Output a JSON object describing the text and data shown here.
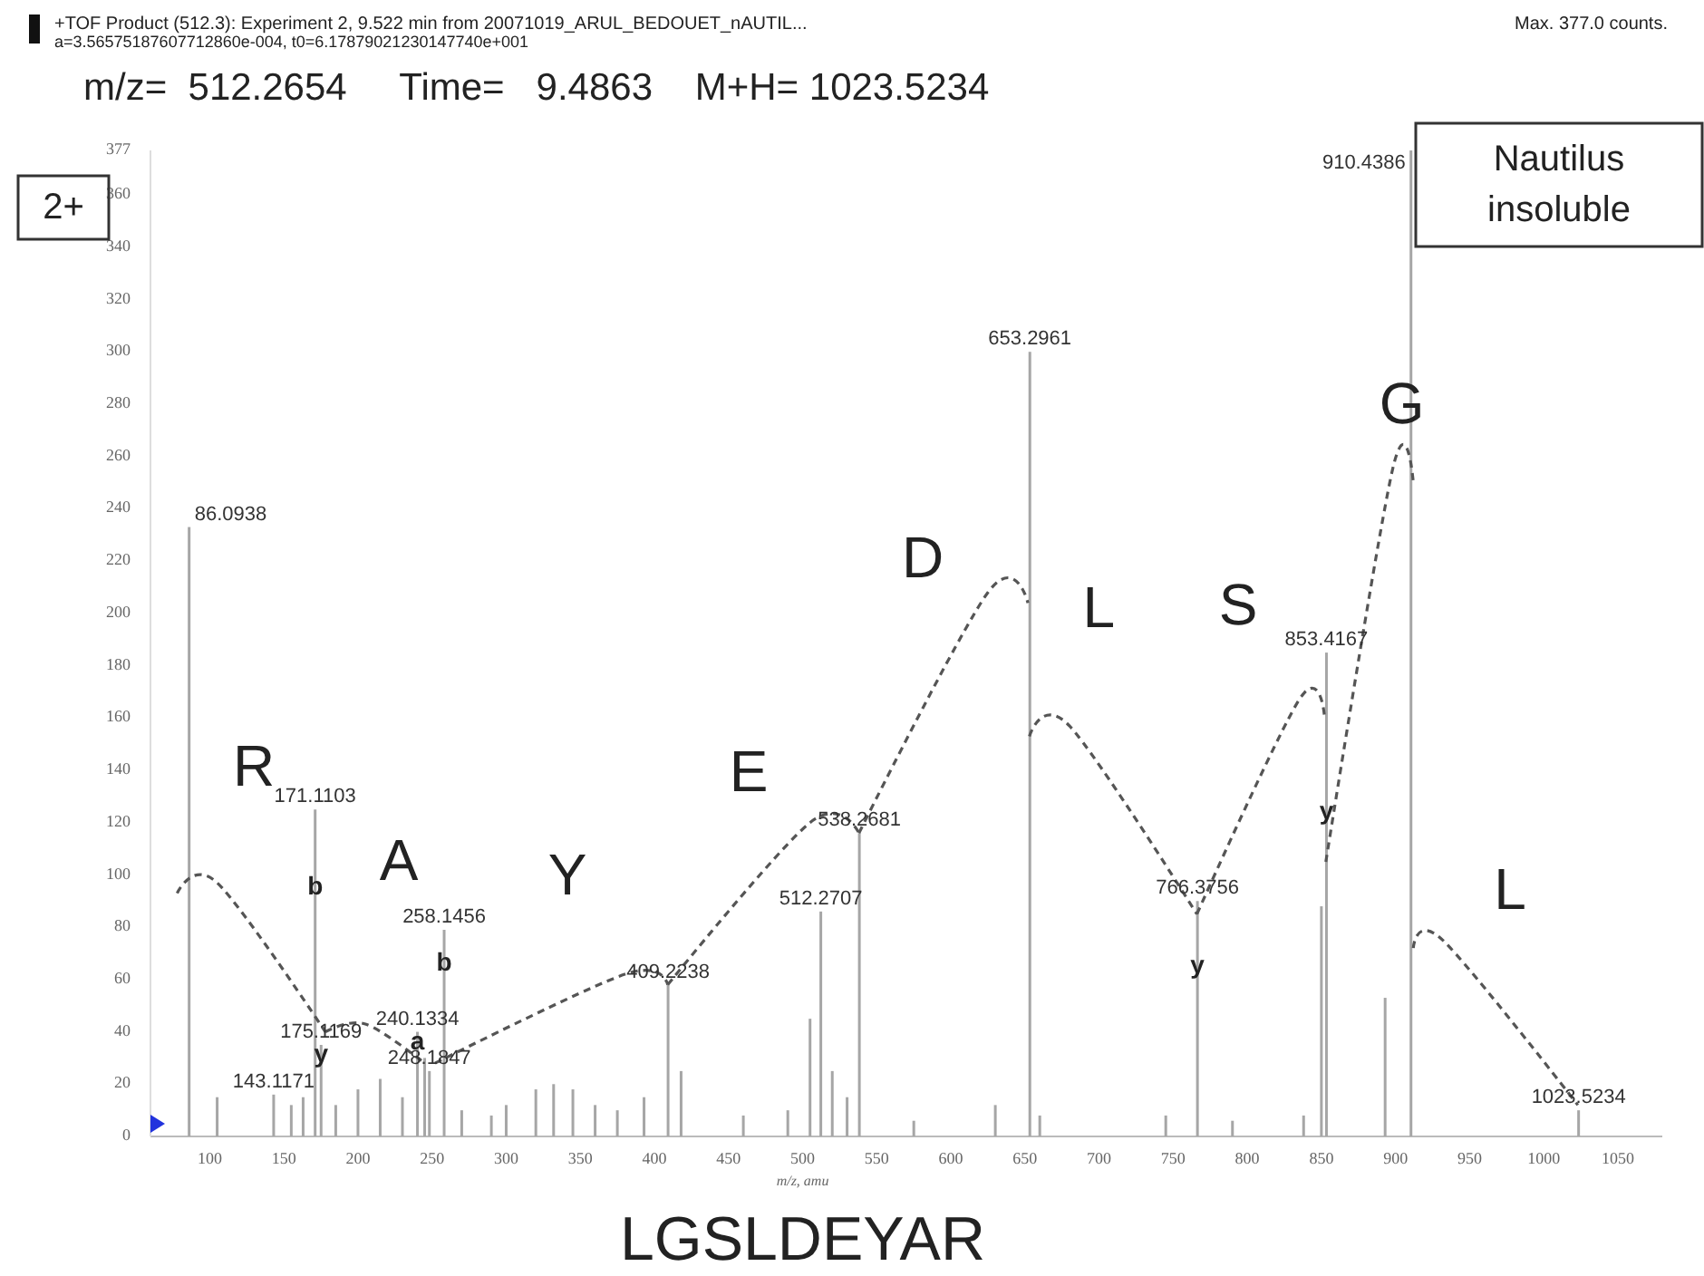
{
  "chart_data": {
    "type": "bar",
    "title": "+TOF Product (512.3): Experiment 2, 9.522 min from 20071019_ARUL_BEDOUET_nAUTIL...",
    "subtitle": "m/z=  512.2654     Time=   9.4863    M+H= 1023.5234",
    "xlabel": "m/z, amu",
    "x": [
      86.0938,
      105,
      143.1171,
      155,
      163,
      171.1103,
      175.1169,
      185,
      200,
      215,
      230,
      240.1334,
      245,
      248.1847,
      258.1456,
      270,
      290,
      300,
      320,
      332,
      345,
      360,
      375,
      393,
      409.2238,
      418,
      460,
      490,
      505,
      512.2707,
      520,
      530,
      538.2681,
      575,
      630,
      653.2961,
      660,
      745,
      766.3756,
      790,
      838,
      850,
      853.4167,
      893,
      910.4386,
      1023.5234
    ],
    "values": [
      233,
      15,
      16,
      12,
      15,
      125,
      35,
      12,
      18,
      22,
      15,
      40,
      30,
      25,
      79,
      10,
      8,
      12,
      18,
      20,
      18,
      12,
      10,
      15,
      58,
      25,
      8,
      10,
      45,
      86,
      25,
      15,
      116,
      6,
      12,
      300,
      8,
      8,
      90,
      6,
      8,
      88,
      185,
      53,
      377,
      10
    ],
    "color": "#a6a6a6",
    "xlim": [
      60,
      1080
    ],
    "ylim": [
      0,
      377
    ],
    "xticks": [
      100,
      150,
      200,
      250,
      300,
      350,
      400,
      450,
      500,
      550,
      600,
      650,
      700,
      750,
      800,
      850,
      900,
      950,
      1000,
      1050
    ],
    "yticks": [
      0,
      20,
      40,
      60,
      80,
      100,
      120,
      140,
      160,
      180,
      200,
      220,
      240,
      260,
      280,
      300,
      320,
      340,
      360,
      377
    ],
    "grid": false,
    "annotations": [
      "a=3.56575187607712860e-004, t0=6.17879021230147740e+001",
      "Max. 377.0 counts.",
      "2+",
      "Nautilus insoluble",
      "LGSLDEYAR",
      {
        "text": "86.0938",
        "x": 86.0938,
        "y": 233
      },
      {
        "text": "143.1171",
        "x": 143.1171,
        "y": 16
      },
      {
        "text": "171.1103",
        "x": 171.1103,
        "y": 125
      },
      {
        "text": "175.1169",
        "x": 175.1169,
        "y": 35
      },
      {
        "text": "240.1334",
        "x": 240.1334,
        "y": 40
      },
      {
        "text": "248.1847",
        "x": 248.1847,
        "y": 25
      },
      {
        "text": "258.1456",
        "x": 258.1456,
        "y": 79
      },
      {
        "text": "409.2238",
        "x": 409.2238,
        "y": 58
      },
      {
        "text": "512.2707",
        "x": 512.2707,
        "y": 86
      },
      {
        "text": "538.2681",
        "x": 538.2681,
        "y": 116
      },
      {
        "text": "653.2961",
        "x": 653.2961,
        "y": 300
      },
      {
        "text": "766.3756",
        "x": 766.3756,
        "y": 90
      },
      {
        "text": "853.4167",
        "x": 853.4167,
        "y": 185
      },
      {
        "text": "910.4386",
        "x": 910.4386,
        "y": 377
      },
      {
        "text": "1023.5234",
        "x": 1023.5234,
        "y": 10
      },
      "R",
      "A",
      "Y",
      "E",
      "D",
      {
        "text": "L",
        "x": 653.2961,
        "y": 204
      },
      "S",
      {
        "text": "G",
        "x": 910.4386,
        "y": 250
      },
      "L",
      {
        "text": "b",
        "x": 171.1103,
        "y": 95
      },
      {
        "text": "b",
        "x": 258.1456,
        "y": 66
      },
      {
        "text": "a",
        "x": 240.1334,
        "y": 36
      },
      {
        "text": "y",
        "x": 175.1169,
        "y": 31
      },
      {
        "text": "y",
        "x": 766.3756,
        "y": 65
      },
      {
        "text": "y",
        "x": 853.4167,
        "y": 124
      }
    ]
  }
}
